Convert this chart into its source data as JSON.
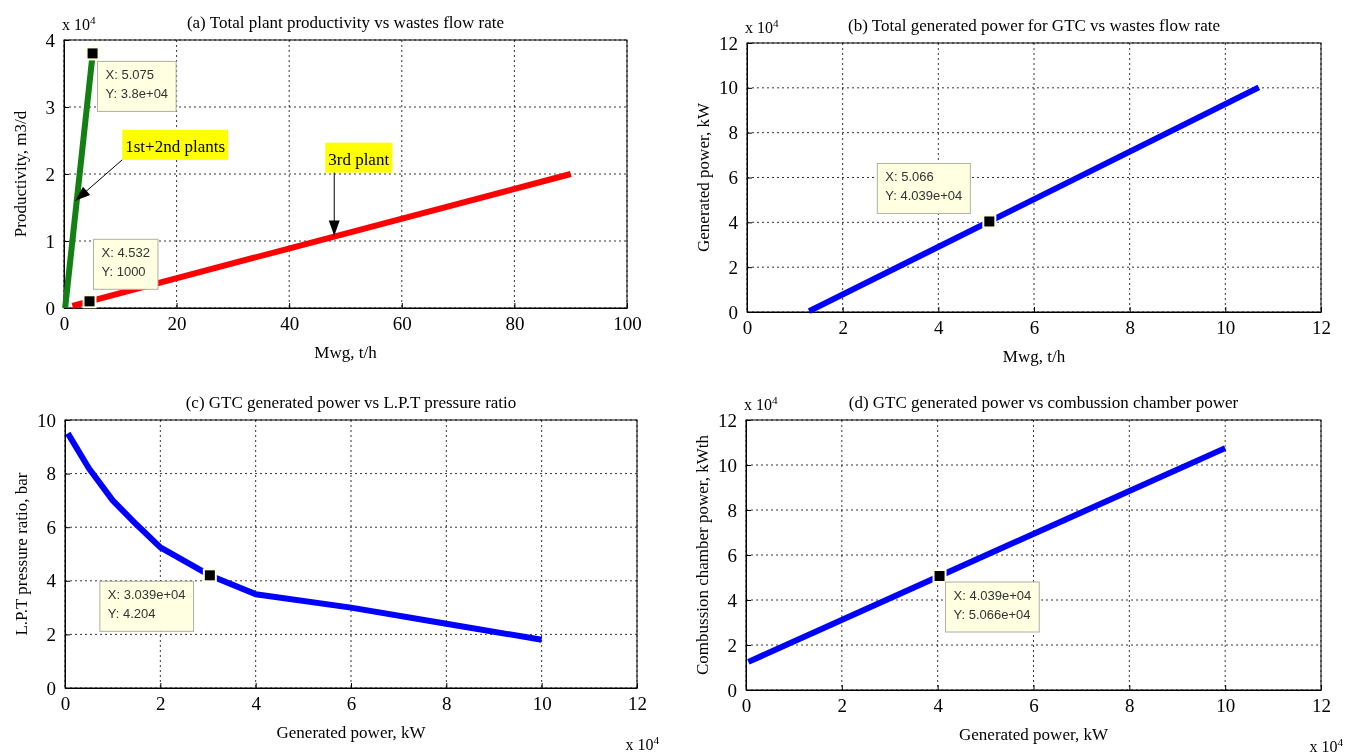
{
  "chart_data": [
    {
      "type": "line",
      "title": "(a) Total plant productivity vs wastes flow rate",
      "xlabel": "Mwg, t/h",
      "ylabel": "Productivity, m3/d",
      "xlim": [
        0,
        100
      ],
      "ylim": [
        0,
        4
      ],
      "xticks": [
        0,
        20,
        40,
        60,
        80,
        100
      ],
      "yticks": [
        0,
        1,
        2,
        3,
        4
      ],
      "grid": true,
      "series": [
        {
          "color": "#138013",
          "x": [
            0.2,
            5.1
          ],
          "values": [
            0,
            3.8
          ]
        },
        {
          "color": "#ff0000",
          "x": [
            1.5,
            4.5,
            90
          ],
          "values": [
            0.03,
            0.1,
            2.0
          ]
        }
      ],
      "annotations": [
        "x 10$^{4}$",
        {
          "text": "X: 5.075\nY: 3.8e+04",
          "x": 5.075,
          "y": 3.8
        },
        {
          "text": "X: 4.532\nY: 1000",
          "x": 4.532,
          "y": 0.1
        },
        {
          "text": "1st+2nd plants",
          "x": 2,
          "y": 1.6
        },
        {
          "text": "3rd plant",
          "x": 48,
          "y": 1.08
        }
      ]
    },
    {
      "type": "line",
      "title": "(b) Total generated power for GTC vs wastes flow rate",
      "xlabel": "Mwg, t/h",
      "ylabel": "Generated power, kW",
      "xlim": [
        0,
        12
      ],
      "ylim": [
        0,
        12
      ],
      "xticks": [
        0,
        2,
        4,
        6,
        8,
        10,
        12
      ],
      "yticks": [
        0,
        2,
        4,
        6,
        8,
        10,
        12
      ],
      "grid": true,
      "series": [
        {
          "color": "#0000ff",
          "x": [
            1.3,
            5.07,
            10.7
          ],
          "values": [
            0.04,
            4.04,
            10.02
          ]
        }
      ],
      "annotations": [
        "x 10$^{4}$",
        {
          "text": "X: 5.066\nY: 4.039e+04",
          "x": 5.066,
          "y": 4.039
        }
      ]
    },
    {
      "type": "line",
      "title": "(c) GTC generated power vs L.P.T pressure ratio",
      "xlabel": "Generated power, kW",
      "ylabel": "L.P.T pressure ratio, bar",
      "xlim": [
        0,
        12
      ],
      "ylim": [
        0,
        10
      ],
      "xticks": [
        0,
        2,
        4,
        6,
        8,
        10,
        12
      ],
      "yticks": [
        0,
        2,
        4,
        6,
        8,
        10
      ],
      "grid": true,
      "series": [
        {
          "color": "#0000ff",
          "x": [
            0.06,
            0.5,
            1,
            1.5,
            2,
            3.04,
            4,
            6,
            8,
            10
          ],
          "values": [
            9.5,
            8.2,
            7.0,
            6.1,
            5.25,
            4.2,
            3.5,
            3.0,
            2.4,
            1.8
          ]
        }
      ],
      "annotations": [
        "x 10$^{4}$",
        {
          "text": "X: 3.039e+04\nY: 4.204",
          "x": 3.039,
          "y": 4.204
        }
      ]
    },
    {
      "type": "line",
      "title": "(d) GTC generated power vs combussion chamber power",
      "xlabel": "Generated power, kW",
      "ylabel": "Combussion chamber power, kWth",
      "xlim": [
        0,
        12
      ],
      "ylim": [
        0,
        12
      ],
      "xticks": [
        0,
        2,
        4,
        6,
        8,
        10,
        12
      ],
      "yticks": [
        0,
        2,
        4,
        6,
        8,
        10,
        12
      ],
      "grid": true,
      "series": [
        {
          "color": "#0000ff",
          "x": [
            0.05,
            4.04,
            10
          ],
          "values": [
            1.25,
            5.07,
            10.75
          ]
        }
      ],
      "annotations": [
        "x 10$^{4}$",
        "x 10$^{4}$",
        {
          "text": "X: 4.039e+04\nY: 5.066e+04",
          "x": 4.039,
          "y": 5.066
        }
      ]
    }
  ]
}
